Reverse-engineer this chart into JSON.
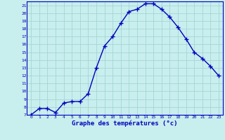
{
  "hours": [
    0,
    1,
    2,
    3,
    4,
    5,
    6,
    7,
    8,
    9,
    10,
    11,
    12,
    13,
    14,
    15,
    16,
    17,
    18,
    19,
    20,
    21,
    22,
    23
  ],
  "temperatures": [
    7.0,
    7.8,
    7.8,
    7.3,
    8.5,
    8.7,
    8.7,
    9.7,
    13.0,
    15.8,
    17.0,
    18.7,
    20.2,
    20.5,
    21.2,
    21.2,
    20.5,
    19.5,
    18.2,
    16.7,
    15.0,
    14.2,
    13.2,
    12.0
  ],
  "line_color": "#0000bb",
  "marker": "+",
  "marker_color": "#0000bb",
  "bg_color": "#c8eeee",
  "grid_color": "#a0d0d0",
  "tick_color": "#0000bb",
  "xlabel": "Graphe des températures (°c)",
  "ylim": [
    7,
    21
  ],
  "xlim_min": -0.5,
  "xlim_max": 23.5,
  "yticks": [
    7,
    8,
    9,
    10,
    11,
    12,
    13,
    14,
    15,
    16,
    17,
    18,
    19,
    20,
    21
  ],
  "xticks": [
    0,
    1,
    2,
    3,
    4,
    5,
    6,
    7,
    8,
    9,
    10,
    11,
    12,
    13,
    14,
    15,
    16,
    17,
    18,
    19,
    20,
    21,
    22,
    23
  ],
  "spine_color": "#0000bb"
}
